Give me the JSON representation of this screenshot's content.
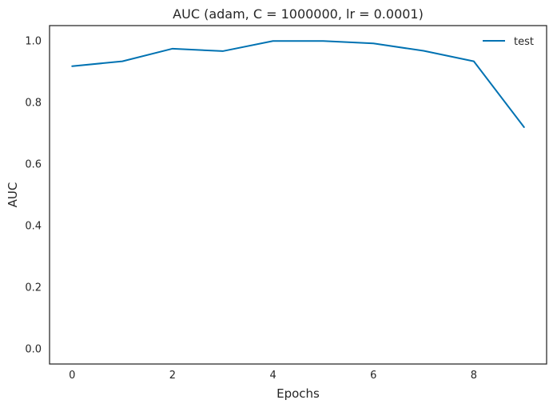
{
  "chart_data": {
    "type": "line",
    "title": "AUC (adam, C = 1000000, lr = 0.0001)",
    "xlabel": "Epochs",
    "ylabel": "AUC",
    "xlim": [
      -0.45,
      9.45
    ],
    "ylim": [
      -0.05,
      1.05
    ],
    "xticks": [
      0,
      2,
      4,
      6,
      8
    ],
    "yticks": [
      0.0,
      0.2,
      0.4,
      0.6,
      0.8,
      1.0
    ],
    "xtick_labels": [
      "0",
      "2",
      "4",
      "6",
      "8"
    ],
    "ytick_labels": [
      "0.0",
      "0.2",
      "0.4",
      "0.6",
      "0.8",
      "1.0"
    ],
    "grid": false,
    "legend_position": "top-right",
    "series": [
      {
        "name": "test",
        "color": "#0072b2",
        "x": [
          0,
          1,
          2,
          3,
          4,
          5,
          6,
          7,
          8,
          9
        ],
        "values": [
          0.918,
          0.934,
          0.975,
          0.967,
          1.0,
          1.0,
          0.992,
          0.968,
          0.934,
          0.72
        ]
      }
    ]
  }
}
